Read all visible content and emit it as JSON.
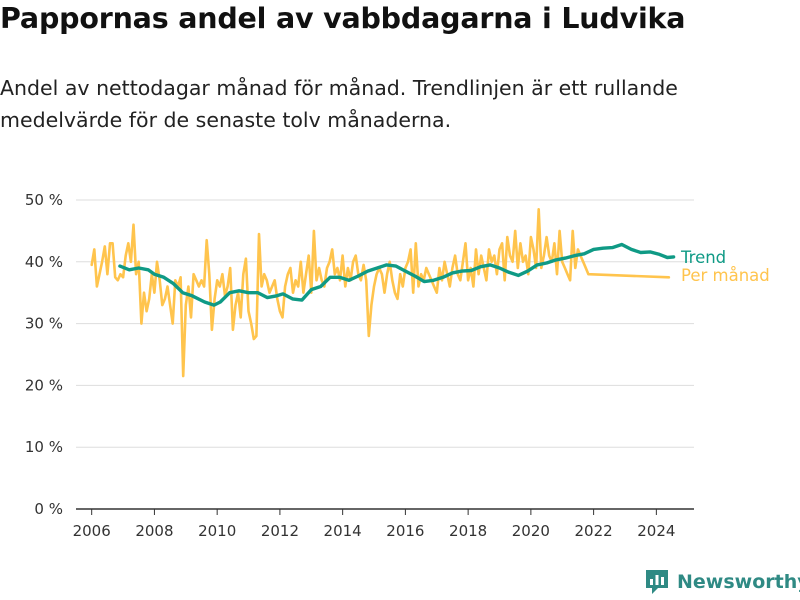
{
  "title": "Pappornas andel av vabbdagarna i Ludvika",
  "subtitle": "Andel av nettodagar månad för månad. Trendlinjen är ett rullande medelvärde för de senaste tolv månaderna.",
  "brand": "Newsworthy",
  "colors": {
    "trend": "#0f9a85",
    "monthly": "#ffc44d",
    "grid": "#dddddd",
    "brand": "#2f8a84"
  },
  "chart_data": {
    "type": "line",
    "ylim": [
      0,
      50
    ],
    "xlim": [
      2005.5,
      2025.2
    ],
    "y_ticks": [
      0,
      10,
      20,
      30,
      40,
      50
    ],
    "y_tick_labels": [
      "0 %",
      "10 %",
      "20 %",
      "30 %",
      "40 %",
      "50 %"
    ],
    "x_ticks": [
      2006,
      2008,
      2010,
      2012,
      2014,
      2016,
      2018,
      2020,
      2022,
      2024
    ],
    "x_tick_labels": [
      "2006",
      "2008",
      "2010",
      "2012",
      "2014",
      "2016",
      "2018",
      "2020",
      "2022",
      "2024"
    ],
    "grid": true,
    "series": [
      {
        "name": "Per månad",
        "values_start": 2006.0,
        "values_step": 0.083333,
        "values": [
          39.5,
          42,
          36,
          38,
          40,
          42.5,
          38,
          43,
          43,
          37.5,
          37,
          38,
          37.5,
          41,
          43,
          40,
          46,
          38,
          40,
          30,
          35,
          32,
          34,
          38,
          35,
          40,
          37,
          33,
          34,
          36,
          33,
          30,
          37,
          36,
          37.5,
          21.5,
          33,
          36,
          31,
          38,
          37,
          36,
          37,
          36,
          43.5,
          38,
          29,
          34,
          37,
          36,
          38,
          34.5,
          36,
          39,
          29,
          33,
          35,
          31,
          38,
          40.5,
          32,
          30,
          27.5,
          28,
          44.5,
          36,
          38,
          37,
          35,
          36,
          37,
          34,
          32,
          31,
          36,
          38,
          39,
          35,
          37,
          36,
          40,
          35,
          38,
          41,
          35,
          45,
          37,
          39,
          37,
          36,
          39,
          40,
          42,
          38,
          39,
          37,
          41,
          36,
          39,
          37,
          40,
          41,
          38,
          37,
          39.5,
          37,
          28,
          33,
          36,
          38,
          39,
          38,
          35,
          38,
          40,
          37,
          35,
          34,
          38,
          36,
          39,
          40,
          42,
          35,
          43,
          36,
          38,
          37,
          39,
          38,
          37,
          36,
          35,
          39,
          37,
          40,
          38,
          36,
          39,
          41,
          38,
          37,
          40,
          43,
          37,
          39,
          36,
          42,
          38,
          41,
          39,
          37,
          42,
          40,
          41,
          38,
          42,
          43,
          37,
          44,
          41,
          40,
          45,
          39,
          43,
          40,
          41,
          38,
          44,
          42,
          39,
          48.5,
          39,
          41,
          44,
          41,
          40,
          43,
          38,
          45,
          40,
          39,
          38,
          37,
          45,
          39,
          42,
          41,
          40,
          39,
          38
        ],
        "values_end": 37.5
      },
      {
        "name": "Trend",
        "points": [
          [
            2006.9,
            39.3
          ],
          [
            2007.2,
            38.7
          ],
          [
            2007.5,
            39
          ],
          [
            2007.8,
            38.7
          ],
          [
            2008.0,
            38
          ],
          [
            2008.3,
            37.5
          ],
          [
            2008.6,
            36.5
          ],
          [
            2008.9,
            35
          ],
          [
            2009.2,
            34.5
          ],
          [
            2009.6,
            33.5
          ],
          [
            2009.9,
            33
          ],
          [
            2010.1,
            33.5
          ],
          [
            2010.4,
            35
          ],
          [
            2010.7,
            35.3
          ],
          [
            2011.0,
            35
          ],
          [
            2011.3,
            35
          ],
          [
            2011.6,
            34.2
          ],
          [
            2011.9,
            34.5
          ],
          [
            2012.1,
            34.8
          ],
          [
            2012.4,
            34
          ],
          [
            2012.7,
            33.8
          ],
          [
            2013.0,
            35.5
          ],
          [
            2013.3,
            36
          ],
          [
            2013.6,
            37.5
          ],
          [
            2013.9,
            37.5
          ],
          [
            2014.2,
            37
          ],
          [
            2014.5,
            37.7
          ],
          [
            2014.8,
            38.5
          ],
          [
            2015.1,
            39
          ],
          [
            2015.4,
            39.5
          ],
          [
            2015.7,
            39.3
          ],
          [
            2016.0,
            38.5
          ],
          [
            2016.3,
            37.7
          ],
          [
            2016.6,
            36.8
          ],
          [
            2016.9,
            37
          ],
          [
            2017.2,
            37.5
          ],
          [
            2017.5,
            38.2
          ],
          [
            2017.8,
            38.5
          ],
          [
            2018.1,
            38.6
          ],
          [
            2018.4,
            39.2
          ],
          [
            2018.7,
            39.5
          ],
          [
            2019.0,
            39
          ],
          [
            2019.3,
            38.3
          ],
          [
            2019.6,
            37.8
          ],
          [
            2019.9,
            38.5
          ],
          [
            2020.2,
            39.5
          ],
          [
            2020.5,
            39.8
          ],
          [
            2020.8,
            40.3
          ],
          [
            2021.1,
            40.6
          ],
          [
            2021.4,
            41
          ],
          [
            2021.7,
            41.3
          ],
          [
            2022.0,
            42
          ],
          [
            2022.3,
            42.2
          ],
          [
            2022.6,
            42.3
          ],
          [
            2022.9,
            42.8
          ],
          [
            2023.2,
            42
          ],
          [
            2023.5,
            41.5
          ],
          [
            2023.8,
            41.6
          ],
          [
            2024.1,
            41.2
          ],
          [
            2024.35,
            40.7
          ],
          [
            2024.55,
            40.8
          ]
        ]
      }
    ]
  }
}
